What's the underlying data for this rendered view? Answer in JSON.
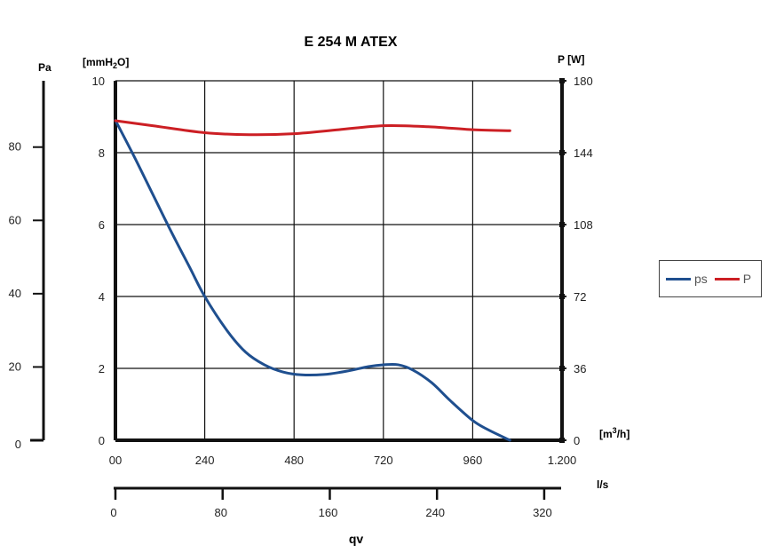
{
  "chart_data": {
    "type": "line",
    "title": "E 254 M ATEX",
    "colors": {
      "ps": "#1f4f8f",
      "P": "#cc1f24",
      "axis": "#111111",
      "grid": "#111111"
    },
    "grid": true,
    "legend_position": "right",
    "left_axis": {
      "label": "[mmH2O]",
      "label_main": "[mmH",
      "label_sub": "2",
      "label_end": "O]",
      "range": [
        0,
        10
      ],
      "ticks": [
        "0",
        "2",
        "4",
        "6",
        "8",
        "10"
      ]
    },
    "pa_axis": {
      "label": "Pa",
      "range": [
        0,
        98.1
      ],
      "ticks": [
        "0",
        "20",
        "40",
        "60",
        "80"
      ],
      "tick_values": [
        0,
        20,
        40,
        60,
        80
      ]
    },
    "right_axis": {
      "label": "P [W]",
      "range": [
        0,
        180
      ],
      "ticks": [
        "0",
        "36",
        "72",
        "108",
        "144",
        "180"
      ]
    },
    "x_axis": {
      "unit_label": "[m3/h]",
      "unit_main": "[m",
      "unit_sup": "3",
      "unit_end": "/h]",
      "range": [
        0,
        1200
      ],
      "ticks": [
        "00",
        "240",
        "480",
        "720",
        "960",
        "1.200"
      ],
      "tick_values": [
        0,
        240,
        480,
        720,
        960,
        1200
      ]
    },
    "ls_axis": {
      "unit_label": "l/s",
      "range": [
        0,
        333.3
      ],
      "ticks": [
        "0",
        "80",
        "160",
        "240",
        "320"
      ],
      "tick_values": [
        0,
        80,
        160,
        240,
        320
      ]
    },
    "bottom_label": "qv",
    "series": [
      {
        "name": "ps",
        "axis": "left",
        "x": [
          0,
          50,
          100,
          150,
          200,
          240,
          300,
          350,
          400,
          450,
          500,
          560,
          620,
          680,
          720,
          760,
          800,
          850,
          900,
          960,
          1000,
          1060
        ],
        "y": [
          8.9,
          7.9,
          6.85,
          5.8,
          4.8,
          4.0,
          3.05,
          2.45,
          2.1,
          1.9,
          1.82,
          1.83,
          1.92,
          2.05,
          2.1,
          2.1,
          1.95,
          1.6,
          1.1,
          0.55,
          0.3,
          0.0
        ]
      },
      {
        "name": "P",
        "axis": "right",
        "x": [
          0,
          100,
          240,
          360,
          480,
          600,
          720,
          840,
          960,
          1060
        ],
        "y": [
          160,
          157.5,
          154,
          153,
          153.5,
          155.5,
          157.5,
          157,
          155.5,
          155
        ]
      }
    ]
  }
}
